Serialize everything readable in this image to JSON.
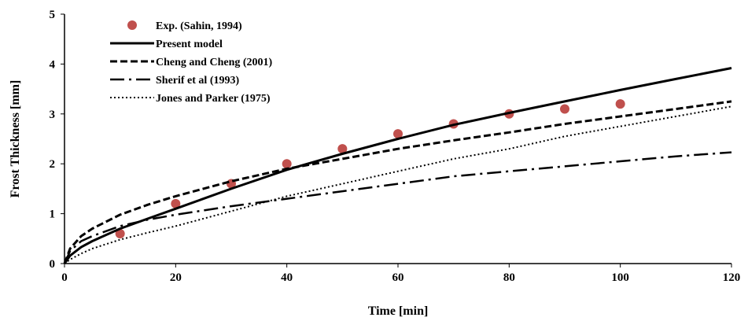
{
  "chart_data": {
    "type": "line",
    "xlabel": "Time [min]",
    "ylabel": "Frost Thickness [mm]",
    "xlim": [
      0,
      120
    ],
    "ylim": [
      0,
      5
    ],
    "xticks": [
      "0",
      "20",
      "40",
      "60",
      "80",
      "100",
      "120"
    ],
    "yticks": [
      "0",
      "1",
      "2",
      "3",
      "4",
      "5"
    ],
    "grid": false,
    "legend_position": "top-left",
    "series": [
      {
        "name": "Exp. (Sahin, 1994)",
        "kind": "scatter",
        "color": "#c0504d",
        "x": [
          10,
          20,
          30,
          40,
          50,
          60,
          70,
          80,
          90,
          100
        ],
        "y": [
          0.6,
          1.2,
          1.6,
          2.0,
          2.3,
          2.6,
          2.8,
          3.0,
          3.1,
          3.2
        ]
      },
      {
        "name": "Present model",
        "kind": "line",
        "style": "solid",
        "color": "#000000",
        "x": [
          0,
          1,
          3,
          5,
          10,
          15,
          20,
          30,
          40,
          50,
          60,
          70,
          80,
          90,
          100,
          110,
          120
        ],
        "y": [
          0,
          0.16,
          0.33,
          0.45,
          0.7,
          0.9,
          1.1,
          1.5,
          1.88,
          2.2,
          2.5,
          2.78,
          3.02,
          3.25,
          3.48,
          3.7,
          3.92
        ]
      },
      {
        "name": "Cheng and Cheng (2001)",
        "kind": "line",
        "style": "dashed",
        "color": "#000000",
        "x": [
          0,
          1,
          3,
          5,
          10,
          15,
          20,
          30,
          40,
          50,
          60,
          70,
          80,
          90,
          100,
          110,
          120
        ],
        "y": [
          0,
          0.3,
          0.55,
          0.7,
          0.98,
          1.18,
          1.35,
          1.65,
          1.9,
          2.1,
          2.3,
          2.47,
          2.63,
          2.8,
          2.95,
          3.1,
          3.25
        ]
      },
      {
        "name": "Sherif et al (1993)",
        "kind": "line",
        "style": "dashdot",
        "color": "#000000",
        "x": [
          0,
          1,
          3,
          5,
          10,
          15,
          20,
          30,
          40,
          50,
          60,
          70,
          80,
          90,
          100,
          110,
          120
        ],
        "y": [
          0,
          0.25,
          0.45,
          0.55,
          0.75,
          0.88,
          0.98,
          1.15,
          1.3,
          1.45,
          1.6,
          1.75,
          1.85,
          1.95,
          2.05,
          2.15,
          2.23
        ]
      },
      {
        "name": "Jones and Parker (1975)",
        "kind": "line",
        "style": "dotted",
        "color": "#000000",
        "x": [
          0,
          1,
          3,
          5,
          10,
          15,
          20,
          30,
          40,
          50,
          60,
          70,
          80,
          90,
          100,
          110,
          120
        ],
        "y": [
          0,
          0.08,
          0.2,
          0.3,
          0.48,
          0.62,
          0.75,
          1.05,
          1.35,
          1.6,
          1.85,
          2.1,
          2.3,
          2.55,
          2.75,
          2.95,
          3.15
        ]
      }
    ]
  }
}
